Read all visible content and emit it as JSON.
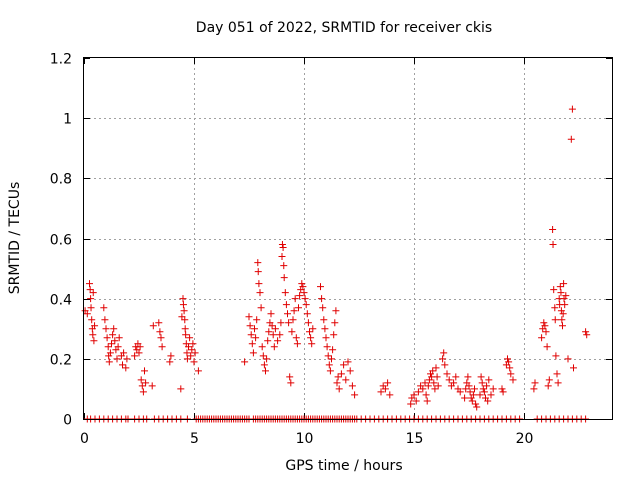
{
  "chart_data": {
    "type": "scatter",
    "title": "Day 051 of 2022, SRMTID for receiver ckis",
    "xlabel": "GPS time / hours",
    "ylabel": "SRMTID / TECUs",
    "xlim": [
      0,
      24
    ],
    "ylim": [
      0,
      1.2
    ],
    "xticks": [
      0,
      5,
      10,
      15,
      20
    ],
    "xtick_labels": [
      "0",
      "5",
      "10",
      "15",
      "20"
    ],
    "yticks": [
      0,
      0.2,
      0.4,
      0.6,
      0.8,
      1.0,
      1.2
    ],
    "ytick_labels": [
      "0",
      "0.2",
      "0.4",
      "0.6",
      "0.8",
      "1",
      "1.2"
    ],
    "grid": true,
    "marker": "+",
    "color": "#e00000",
    "series": [
      {
        "name": "SRMTID",
        "points": [
          [
            0.05,
            0.36
          ],
          [
            0.15,
            0.35
          ],
          [
            0.25,
            0.45
          ],
          [
            0.28,
            0.43
          ],
          [
            0.3,
            0.4
          ],
          [
            0.32,
            0.37
          ],
          [
            0.35,
            0.33
          ],
          [
            0.38,
            0.3
          ],
          [
            0.4,
            0.28
          ],
          [
            0.42,
            0.42
          ],
          [
            0.45,
            0.26
          ],
          [
            0.48,
            0.31
          ],
          [
            0.9,
            0.37
          ],
          [
            0.95,
            0.33
          ],
          [
            1.0,
            0.3
          ],
          [
            1.05,
            0.27
          ],
          [
            1.1,
            0.24
          ],
          [
            1.12,
            0.21
          ],
          [
            1.15,
            0.19
          ],
          [
            1.2,
            0.22
          ],
          [
            1.25,
            0.25
          ],
          [
            1.3,
            0.28
          ],
          [
            1.35,
            0.3
          ],
          [
            1.4,
            0.26
          ],
          [
            1.45,
            0.23
          ],
          [
            1.5,
            0.2
          ],
          [
            1.55,
            0.24
          ],
          [
            1.6,
            0.27
          ],
          [
            1.7,
            0.21
          ],
          [
            1.75,
            0.18
          ],
          [
            1.8,
            0.22
          ],
          [
            1.9,
            0.17
          ],
          [
            1.95,
            0.2
          ],
          [
            2.3,
            0.21
          ],
          [
            2.35,
            0.24
          ],
          [
            2.4,
            0.23
          ],
          [
            2.45,
            0.25
          ],
          [
            2.5,
            0.22
          ],
          [
            2.55,
            0.24
          ],
          [
            2.6,
            0.13
          ],
          [
            2.65,
            0.11
          ],
          [
            2.7,
            0.09
          ],
          [
            2.75,
            0.16
          ],
          [
            2.8,
            0.12
          ],
          [
            3.1,
            0.11
          ],
          [
            3.15,
            0.31
          ],
          [
            3.4,
            0.32
          ],
          [
            3.45,
            0.29
          ],
          [
            3.5,
            0.27
          ],
          [
            3.55,
            0.24
          ],
          [
            3.9,
            0.19
          ],
          [
            3.95,
            0.21
          ],
          [
            4.4,
            0.1
          ],
          [
            4.45,
            0.34
          ],
          [
            4.5,
            0.4
          ],
          [
            4.52,
            0.38
          ],
          [
            4.55,
            0.36
          ],
          [
            4.58,
            0.33
          ],
          [
            4.6,
            0.3
          ],
          [
            4.62,
            0.28
          ],
          [
            4.65,
            0.25
          ],
          [
            4.68,
            0.22
          ],
          [
            4.7,
            0.2
          ],
          [
            4.75,
            0.24
          ],
          [
            4.8,
            0.27
          ],
          [
            4.85,
            0.21
          ],
          [
            4.9,
            0.23
          ],
          [
            4.95,
            0.25
          ],
          [
            5.0,
            0.19
          ],
          [
            5.05,
            0.22
          ],
          [
            5.2,
            0.16
          ],
          [
            7.3,
            0.19
          ],
          [
            7.5,
            0.34
          ],
          [
            7.55,
            0.31
          ],
          [
            7.6,
            0.28
          ],
          [
            7.65,
            0.25
          ],
          [
            7.7,
            0.22
          ],
          [
            7.75,
            0.3
          ],
          [
            7.8,
            0.27
          ],
          [
            7.85,
            0.33
          ],
          [
            7.9,
            0.52
          ],
          [
            7.92,
            0.49
          ],
          [
            7.95,
            0.45
          ],
          [
            8.0,
            0.42
          ],
          [
            8.05,
            0.37
          ],
          [
            8.1,
            0.24
          ],
          [
            8.15,
            0.21
          ],
          [
            8.2,
            0.18
          ],
          [
            8.25,
            0.16
          ],
          [
            8.3,
            0.2
          ],
          [
            8.35,
            0.26
          ],
          [
            8.4,
            0.29
          ],
          [
            8.45,
            0.32
          ],
          [
            8.5,
            0.35
          ],
          [
            8.55,
            0.31
          ],
          [
            8.6,
            0.28
          ],
          [
            8.65,
            0.24
          ],
          [
            8.7,
            0.3
          ],
          [
            8.8,
            0.26
          ],
          [
            8.9,
            0.28
          ],
          [
            8.95,
            0.32
          ],
          [
            9.0,
            0.54
          ],
          [
            9.02,
            0.58
          ],
          [
            9.05,
            0.57
          ],
          [
            9.08,
            0.51
          ],
          [
            9.1,
            0.47
          ],
          [
            9.15,
            0.42
          ],
          [
            9.2,
            0.38
          ],
          [
            9.25,
            0.35
          ],
          [
            9.3,
            0.32
          ],
          [
            9.35,
            0.14
          ],
          [
            9.4,
            0.12
          ],
          [
            9.45,
            0.29
          ],
          [
            9.5,
            0.33
          ],
          [
            9.55,
            0.36
          ],
          [
            9.6,
            0.4
          ],
          [
            9.65,
            0.27
          ],
          [
            9.7,
            0.25
          ],
          [
            9.75,
            0.37
          ],
          [
            9.8,
            0.41
          ],
          [
            9.85,
            0.43
          ],
          [
            9.9,
            0.45
          ],
          [
            9.95,
            0.44
          ],
          [
            10.0,
            0.42
          ],
          [
            10.05,
            0.4
          ],
          [
            10.1,
            0.38
          ],
          [
            10.15,
            0.35
          ],
          [
            10.2,
            0.32
          ],
          [
            10.25,
            0.29
          ],
          [
            10.3,
            0.27
          ],
          [
            10.35,
            0.25
          ],
          [
            10.4,
            0.3
          ],
          [
            10.75,
            0.44
          ],
          [
            10.8,
            0.4
          ],
          [
            10.85,
            0.37
          ],
          [
            10.9,
            0.33
          ],
          [
            10.95,
            0.3
          ],
          [
            11.0,
            0.27
          ],
          [
            11.05,
            0.24
          ],
          [
            11.1,
            0.21
          ],
          [
            11.15,
            0.18
          ],
          [
            11.2,
            0.16
          ],
          [
            11.25,
            0.2
          ],
          [
            11.3,
            0.23
          ],
          [
            11.35,
            0.28
          ],
          [
            11.4,
            0.32
          ],
          [
            11.45,
            0.36
          ],
          [
            11.5,
            0.12
          ],
          [
            11.55,
            0.14
          ],
          [
            11.6,
            0.1
          ],
          [
            11.7,
            0.15
          ],
          [
            11.8,
            0.18
          ],
          [
            11.9,
            0.13
          ],
          [
            12.0,
            0.19
          ],
          [
            12.1,
            0.16
          ],
          [
            12.2,
            0.11
          ],
          [
            12.3,
            0.08
          ],
          [
            13.5,
            0.09
          ],
          [
            13.6,
            0.11
          ],
          [
            13.7,
            0.1
          ],
          [
            13.8,
            0.12
          ],
          [
            13.9,
            0.08
          ],
          [
            14.85,
            0.05
          ],
          [
            14.9,
            0.07
          ],
          [
            15.0,
            0.08
          ],
          [
            15.1,
            0.06
          ],
          [
            15.2,
            0.09
          ],
          [
            15.3,
            0.11
          ],
          [
            15.4,
            0.1
          ],
          [
            15.5,
            0.12
          ],
          [
            15.55,
            0.08
          ],
          [
            15.6,
            0.06
          ],
          [
            15.65,
            0.11
          ],
          [
            15.7,
            0.13
          ],
          [
            15.75,
            0.15
          ],
          [
            15.8,
            0.14
          ],
          [
            15.85,
            0.16
          ],
          [
            15.9,
            0.12
          ],
          [
            15.95,
            0.1
          ],
          [
            16.0,
            0.17
          ],
          [
            16.05,
            0.14
          ],
          [
            16.1,
            0.11
          ],
          [
            16.3,
            0.2
          ],
          [
            16.35,
            0.22
          ],
          [
            16.4,
            0.18
          ],
          [
            16.5,
            0.15
          ],
          [
            16.6,
            0.13
          ],
          [
            16.7,
            0.11
          ],
          [
            16.8,
            0.12
          ],
          [
            16.9,
            0.14
          ],
          [
            17.0,
            0.1
          ],
          [
            17.1,
            0.09
          ],
          [
            17.3,
            0.07
          ],
          [
            17.35,
            0.1
          ],
          [
            17.4,
            0.12
          ],
          [
            17.45,
            0.14
          ],
          [
            17.5,
            0.11
          ],
          [
            17.55,
            0.09
          ],
          [
            17.6,
            0.07
          ],
          [
            17.65,
            0.06
          ],
          [
            17.7,
            0.08
          ],
          [
            17.75,
            0.1
          ],
          [
            17.8,
            0.05
          ],
          [
            17.85,
            0.04
          ],
          [
            18.0,
            0.08
          ],
          [
            18.05,
            0.14
          ],
          [
            18.1,
            0.12
          ],
          [
            18.15,
            0.1
          ],
          [
            18.2,
            0.09
          ],
          [
            18.25,
            0.07
          ],
          [
            18.3,
            0.11
          ],
          [
            18.35,
            0.06
          ],
          [
            18.4,
            0.13
          ],
          [
            18.5,
            0.08
          ],
          [
            18.6,
            0.1
          ],
          [
            19.0,
            0.1
          ],
          [
            19.05,
            0.09
          ],
          [
            19.2,
            0.18
          ],
          [
            19.25,
            0.2
          ],
          [
            19.3,
            0.19
          ],
          [
            19.35,
            0.17
          ],
          [
            19.4,
            0.15
          ],
          [
            19.5,
            0.13
          ],
          [
            20.45,
            0.1
          ],
          [
            20.5,
            0.12
          ],
          [
            20.8,
            0.27
          ],
          [
            20.85,
            0.3
          ],
          [
            20.9,
            0.32
          ],
          [
            20.95,
            0.31
          ],
          [
            21.0,
            0.29
          ],
          [
            21.05,
            0.24
          ],
          [
            21.1,
            0.11
          ],
          [
            21.15,
            0.13
          ],
          [
            21.3,
            0.63
          ],
          [
            21.32,
            0.58
          ],
          [
            21.35,
            0.43
          ],
          [
            21.4,
            0.37
          ],
          [
            21.42,
            0.33
          ],
          [
            21.45,
            0.21
          ],
          [
            21.5,
            0.15
          ],
          [
            21.55,
            0.12
          ],
          [
            21.6,
            0.4
          ],
          [
            21.62,
            0.38
          ],
          [
            21.65,
            0.44
          ],
          [
            21.68,
            0.42
          ],
          [
            21.7,
            0.36
          ],
          [
            21.72,
            0.33
          ],
          [
            21.75,
            0.31
          ],
          [
            21.78,
            0.35
          ],
          [
            21.8,
            0.45
          ],
          [
            21.82,
            0.4
          ],
          [
            21.85,
            0.38
          ],
          [
            21.9,
            0.41
          ],
          [
            22.0,
            0.2
          ],
          [
            22.15,
            0.93
          ],
          [
            22.2,
            1.03
          ],
          [
            22.25,
            0.17
          ],
          [
            22.8,
            0.29
          ],
          [
            22.85,
            0.28
          ]
        ],
        "zero_x": [
          0.15,
          0.3,
          0.5,
          0.7,
          0.9,
          1.1,
          1.3,
          1.5,
          1.7,
          1.9,
          2.0,
          2.3,
          2.5,
          2.7,
          2.85,
          3.2,
          3.4,
          3.6,
          3.8,
          4.0,
          4.2,
          4.4,
          4.7,
          5.1,
          5.2,
          5.3,
          5.4,
          5.5,
          5.6,
          5.7,
          5.8,
          5.9,
          6.0,
          6.1,
          6.2,
          6.3,
          6.4,
          6.5,
          6.6,
          6.7,
          6.8,
          6.9,
          7.0,
          7.1,
          7.2,
          7.3,
          7.4,
          7.5,
          7.7,
          7.8,
          7.9,
          8.0,
          8.1,
          8.2,
          8.3,
          8.4,
          8.5,
          8.6,
          8.7,
          8.8,
          8.9,
          9.0,
          9.1,
          9.2,
          9.3,
          9.4,
          9.5,
          9.6,
          9.7,
          9.8,
          9.9,
          10.0,
          10.1,
          10.2,
          10.3,
          10.4,
          10.5,
          10.6,
          10.7,
          10.8,
          10.9,
          11.0,
          11.1,
          11.2,
          11.3,
          11.4,
          11.5,
          11.6,
          11.7,
          11.8,
          11.9,
          12.0,
          12.1,
          12.2,
          12.3,
          12.4,
          12.6,
          12.8,
          13.0,
          13.2,
          13.4,
          13.6,
          13.8,
          14.0,
          14.2,
          14.4,
          14.6,
          14.8,
          15.0,
          15.2,
          15.4,
          15.6,
          15.8,
          16.0,
          16.2,
          16.4,
          16.6,
          16.8,
          17.0,
          17.2,
          17.4,
          17.6,
          17.8,
          18.0,
          18.2,
          18.4,
          18.6,
          18.8,
          19.0,
          19.2,
          19.4,
          19.6,
          19.8,
          20.6,
          20.8,
          21.0,
          21.2,
          21.4,
          21.6,
          21.8,
          22.0,
          22.2,
          22.4,
          22.6,
          22.8
        ]
      }
    ]
  }
}
